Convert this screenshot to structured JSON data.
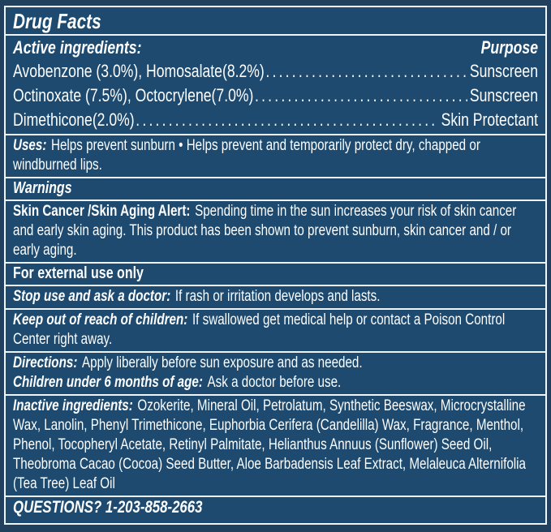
{
  "label": {
    "title": "Drug Facts",
    "colors": {
      "background": "#1d4a6e",
      "outer_margin": "#21405e",
      "rule": "#eef4f8",
      "text": "#fdfeff"
    },
    "active_ingredients": {
      "heading": "Active ingredients:",
      "purpose_heading": "Purpose",
      "items": [
        {
          "name": "Avobenzone (3.0%), Homosalate(8.2%)",
          "purpose": "Sunscreen"
        },
        {
          "name": "Octinoxate (7.5%), Octocrylene(7.0%)",
          "purpose": "Sunscreen"
        },
        {
          "name": "Dimethicone(2.0%)",
          "purpose": "Skin Protectant"
        }
      ]
    },
    "uses": {
      "heading": "Uses:",
      "text": "Helps prevent sunburn • Helps prevent and temporarily protect dry, chapped or windburned lips."
    },
    "warnings": {
      "heading": "Warnings"
    },
    "skin_alert": {
      "heading": "Skin Cancer /Skin Aging Alert:",
      "text": "Spending time in the sun increases your risk of skin cancer and early skin aging. This product has been shown to prevent sunburn, skin cancer and / or early aging."
    },
    "external_use": "For external use only",
    "stop_use": {
      "heading": "Stop use and ask a doctor:",
      "text": "If rash or irritation develops and lasts."
    },
    "keep_out": {
      "heading": "Keep out of reach of children:",
      "text": "If swallowed get medical help or contact a Poison Control Center right away."
    },
    "directions": {
      "heading": "Directions:",
      "text": "Apply liberally before sun exposure and as needed."
    },
    "children": {
      "heading": "Children under 6 months of age:",
      "text": "Ask a doctor before use."
    },
    "inactive": {
      "heading": "Inactive ingredients:",
      "text": "Ozokerite, Mineral Oil, Petrolatum, Synthetic Beeswax, Microcrystalline Wax, Lanolin, Phenyl Trimethicone, Euphorbia Cerifera (Candelilla) Wax, Fragrance, Menthol, Phenol, Tocopheryl Acetate, Retinyl Palmitate, Helianthus Annuus (Sunflower) Seed Oil, Theobroma Cacao (Cocoa) Seed Butter, Aloe Barbadensis Leaf Extract, Melaleuca Alternifolia (Tea Tree) Leaf Oil"
    },
    "questions": "QUESTIONS? 1-203-858-2663"
  }
}
